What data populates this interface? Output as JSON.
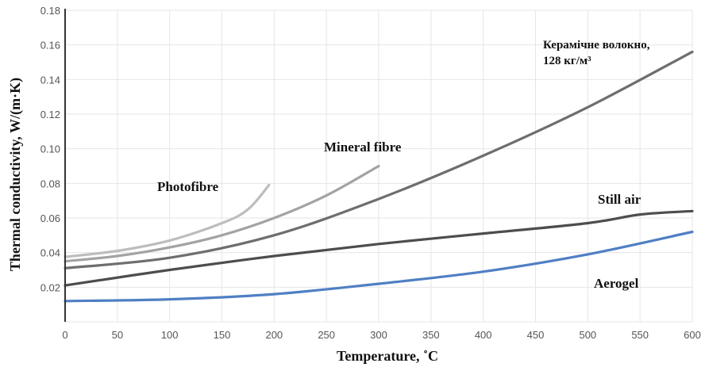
{
  "chart_data": {
    "type": "line",
    "xlabel": "Temperature, ˚C",
    "ylabel": "Thermal conductivity, W/(m·K)",
    "xlim": [
      0,
      600
    ],
    "ylim": [
      0,
      0.18
    ],
    "x_ticks": [
      "0",
      "50",
      "100",
      "150",
      "200",
      "250",
      "300",
      "350",
      "400",
      "450",
      "500",
      "550",
      "600"
    ],
    "y_ticks": [
      "0.02",
      "0.04",
      "0.06",
      "0.08",
      "0.10",
      "0.12",
      "0.14",
      "0.16",
      "0.18"
    ],
    "grid": true,
    "series": [
      {
        "name": "Photofibre",
        "color": "#bdbdbd",
        "points": [
          [
            0,
            0.0375
          ],
          [
            50,
            0.041
          ],
          [
            100,
            0.047
          ],
          [
            150,
            0.057
          ],
          [
            175,
            0.065
          ],
          [
            195,
            0.079
          ]
        ]
      },
      {
        "name": "Mineral fibre",
        "color": "#a3a3a3",
        "points": [
          [
            0,
            0.035
          ],
          [
            50,
            0.038
          ],
          [
            100,
            0.043
          ],
          [
            150,
            0.05
          ],
          [
            200,
            0.06
          ],
          [
            250,
            0.073
          ],
          [
            300,
            0.09
          ]
        ]
      },
      {
        "name_line1": "Керамічне волокно,",
        "name_line2": "128 кг/м³",
        "color": "#6e6e6e",
        "points": [
          [
            0,
            0.031
          ],
          [
            100,
            0.037
          ],
          [
            200,
            0.05
          ],
          [
            300,
            0.071
          ],
          [
            400,
            0.096
          ],
          [
            500,
            0.124
          ],
          [
            600,
            0.156
          ]
        ]
      },
      {
        "name": "Still air",
        "color": "#4d4d4d",
        "points": [
          [
            0,
            0.021
          ],
          [
            100,
            0.03
          ],
          [
            200,
            0.038
          ],
          [
            300,
            0.045
          ],
          [
            400,
            0.051
          ],
          [
            500,
            0.057
          ],
          [
            550,
            0.062
          ],
          [
            600,
            0.064
          ]
        ]
      },
      {
        "name": "Aerogel",
        "color": "#4f7fc4",
        "points": [
          [
            0,
            0.012
          ],
          [
            100,
            0.013
          ],
          [
            200,
            0.016
          ],
          [
            300,
            0.022
          ],
          [
            400,
            0.029
          ],
          [
            500,
            0.039
          ],
          [
            600,
            0.052
          ]
        ]
      }
    ]
  }
}
